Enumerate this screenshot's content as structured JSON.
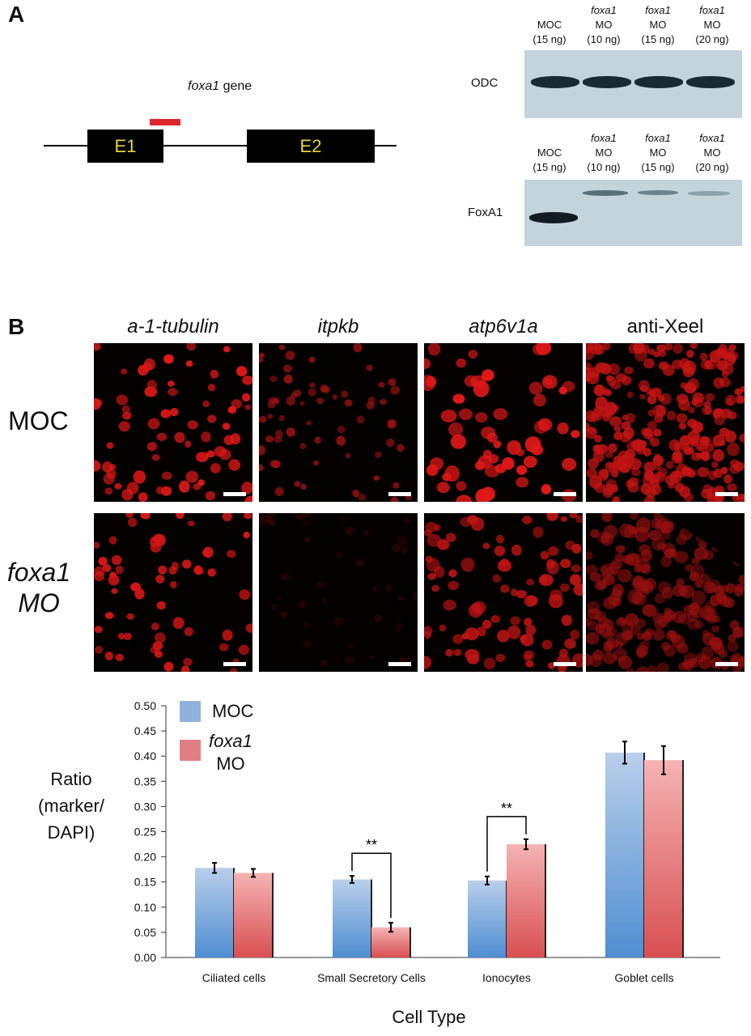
{
  "panel_a": {
    "letter": "A",
    "gene_label_italic": "foxa1",
    "gene_label_rest": " gene",
    "exons": [
      "E1",
      "E2"
    ],
    "gel_top": {
      "row_label": "ODC",
      "lanes": [
        {
          "line1": "MOC",
          "line1_italic": false,
          "line2": "",
          "line3": "(15 ng)"
        },
        {
          "line1": "foxa1",
          "line1_italic": true,
          "line2": "MO",
          "line3": "(10 ng)"
        },
        {
          "line1": "foxa1",
          "line1_italic": true,
          "line2": "MO",
          "line3": "(15 ng)"
        },
        {
          "line1": "foxa1",
          "line1_italic": true,
          "line2": "MO",
          "line3": "(20 ng)"
        }
      ]
    },
    "gel_bottom": {
      "row_label": "FoxA1",
      "lanes": [
        {
          "line1": "MOC",
          "line1_italic": false,
          "line2": "",
          "line3": "(15 ng)"
        },
        {
          "line1": "foxa1",
          "line1_italic": true,
          "line2": "MO",
          "line3": "(10 ng)"
        },
        {
          "line1": "foxa1",
          "line1_italic": true,
          "line2": "MO",
          "line3": "(15 ng)"
        },
        {
          "line1": "foxa1",
          "line1_italic": true,
          "line2": "MO",
          "line3": "(20 ng)"
        }
      ]
    },
    "colors": {
      "probe": "#e0262c",
      "exon_text": "#e5d53a",
      "gel_bg": "#c3d4dc",
      "band": "#1a2a33"
    }
  },
  "panel_b": {
    "letter": "B",
    "columns": [
      "a-1-tubulin",
      "itpkb",
      "atp6v1a",
      "anti-Xeel"
    ],
    "rows": [
      {
        "line1": "MOC",
        "line2": "",
        "italic": false
      },
      {
        "line1": "foxa1",
        "line2": "MO",
        "italic": true
      }
    ]
  },
  "chart_data": {
    "type": "bar",
    "ylabel_lines": [
      "Ratio",
      "(marker/",
      "DAPI)"
    ],
    "xlabel": "Cell Type",
    "ylim": [
      0,
      0.5
    ],
    "yticks": [
      "0.00",
      "0.05",
      "0.10",
      "0.15",
      "0.20",
      "0.25",
      "0.30",
      "0.35",
      "0.40",
      "0.45",
      "0.50"
    ],
    "categories": [
      "Ciliated cells",
      "Small Secretory Cells",
      "Ionocytes",
      "Goblet cells"
    ],
    "series": [
      {
        "name": "MOC",
        "name_italic": "",
        "name_rest": "MOC",
        "color": "#8fb2dc",
        "values": [
          0.178,
          0.155,
          0.153,
          0.407
        ],
        "errors": [
          0.01,
          0.007,
          0.008,
          0.022
        ]
      },
      {
        "name": "foxa1 MO",
        "name_italic": "foxa1",
        "name_rest": "MO",
        "color": "#e07f82",
        "values": [
          0.168,
          0.06,
          0.225,
          0.392
        ],
        "errors": [
          0.008,
          0.009,
          0.01,
          0.028
        ]
      }
    ],
    "significance": [
      {
        "category_index": 1,
        "label": "**"
      },
      {
        "category_index": 2,
        "label": "**"
      }
    ],
    "legend_position": "top-left",
    "grid": false
  }
}
